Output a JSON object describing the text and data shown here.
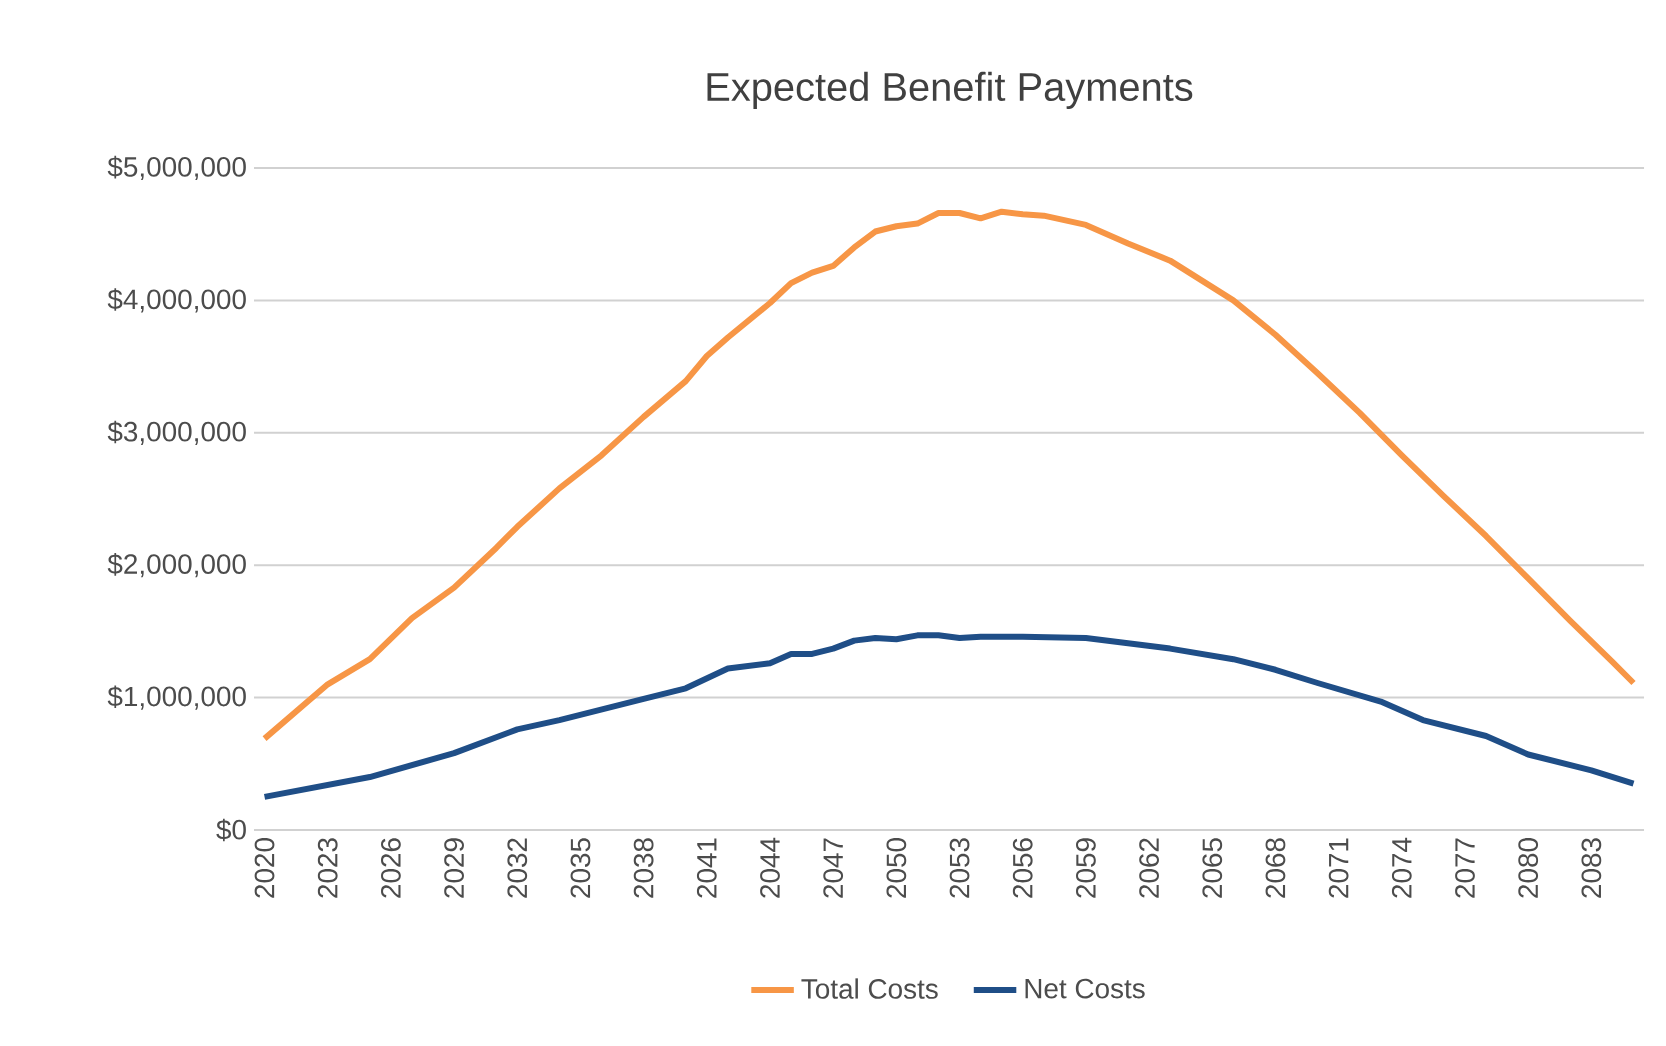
{
  "chart_data": {
    "type": "line",
    "title": "Expected Benefit Payments",
    "xlim": [
      2019.5,
      2085.5
    ],
    "xticks": [
      2020,
      2023,
      2026,
      2029,
      2032,
      2035,
      2038,
      2041,
      2044,
      2047,
      2050,
      2053,
      2056,
      2059,
      2062,
      2065,
      2068,
      2071,
      2074,
      2077,
      2080,
      2083
    ],
    "ylim": [
      0,
      5000000
    ],
    "yticks": [
      {
        "value": 0,
        "label": "$0"
      },
      {
        "value": 1000000,
        "label": "$1,000,000"
      },
      {
        "value": 2000000,
        "label": "$2,000,000"
      },
      {
        "value": 3000000,
        "label": "$3,000,000"
      },
      {
        "value": 4000000,
        "label": "$4,000,000"
      },
      {
        "value": 5000000,
        "label": "$5,000,000"
      }
    ],
    "grid": "y",
    "legend": "bottom",
    "marker": "none",
    "line_style": "solid",
    "series": [
      {
        "name": "Total Costs",
        "color": "#f79646",
        "x": [
          2020,
          2023,
          2025,
          2027,
          2029,
          2031,
          2032,
          2034,
          2036,
          2038,
          2040,
          2041,
          2042,
          2044,
          2045,
          2046,
          2047,
          2048,
          2049,
          2050,
          2051,
          2052,
          2053,
          2054,
          2055,
          2056,
          2057,
          2059,
          2061,
          2063,
          2065,
          2066,
          2068,
          2070,
          2072,
          2074,
          2076,
          2078,
          2080,
          2082,
          2084,
          2085
        ],
        "values": [
          690000,
          1100000,
          1290000,
          1600000,
          1830000,
          2130000,
          2290000,
          2580000,
          2830000,
          3120000,
          3390000,
          3580000,
          3720000,
          3980000,
          4130000,
          4210000,
          4260000,
          4400000,
          4520000,
          4560000,
          4580000,
          4660000,
          4660000,
          4620000,
          4670000,
          4650000,
          4640000,
          4570000,
          4430000,
          4300000,
          4100000,
          4000000,
          3740000,
          3450000,
          3150000,
          2830000,
          2520000,
          2220000,
          1900000,
          1580000,
          1270000,
          1110000
        ]
      },
      {
        "name": "Net Costs",
        "color": "#1f4e87",
        "x": [
          2020,
          2025,
          2029,
          2032,
          2034,
          2038,
          2040,
          2042,
          2044,
          2045,
          2046,
          2047,
          2048,
          2049,
          2050,
          2051,
          2052,
          2053,
          2054,
          2056,
          2059,
          2063,
          2066,
          2068,
          2070,
          2073,
          2075,
          2078,
          2080,
          2083,
          2085
        ],
        "values": [
          250000,
          400000,
          580000,
          760000,
          830000,
          990000,
          1070000,
          1220000,
          1260000,
          1330000,
          1330000,
          1370000,
          1430000,
          1450000,
          1440000,
          1470000,
          1470000,
          1450000,
          1460000,
          1460000,
          1450000,
          1370000,
          1290000,
          1210000,
          1110000,
          970000,
          830000,
          710000,
          570000,
          450000,
          350000
        ]
      }
    ]
  }
}
